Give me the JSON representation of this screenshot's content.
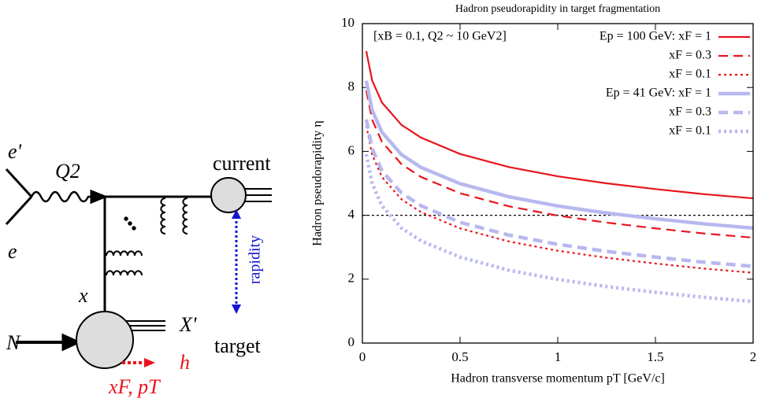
{
  "diagram": {
    "labels": [
      "e'",
      "Q2",
      "e",
      "x",
      "N",
      "current",
      "rapidity",
      "X'",
      "target",
      "h",
      "xF, pT"
    ]
  },
  "chart_data": {
    "type": "line",
    "title": "Hadron pseudorapidity in target fragmentation",
    "annotation": "[xB = 0.1, Q2 ~ 10 GeV2]",
    "x_label": "Hadron transverse momentum   pT   [GeV/c]",
    "y_label": "Hadron pseudorapidity   η",
    "x": [
      0.02,
      0.05,
      0.1,
      0.2,
      0.3,
      0.5,
      0.75,
      1,
      1.25,
      1.5,
      1.75,
      2
    ],
    "series": [
      {
        "name": "Ep = 100 GeV: xF = 1",
        "color": "#e8141c",
        "dash": "solid",
        "values": [
          9.14,
          8.22,
          7.53,
          6.83,
          6.43,
          5.92,
          5.51,
          5.22,
          5.0,
          4.82,
          4.66,
          4.53
        ]
      },
      {
        "name": "xF = 0.3",
        "color": "#e8141c",
        "dash": "dashed",
        "values": [
          7.91,
          6.99,
          6.3,
          5.6,
          5.2,
          4.69,
          4.28,
          3.99,
          3.77,
          3.59,
          3.43,
          3.3
        ]
      },
      {
        "name": "xF = 0.1",
        "color": "#e8141c",
        "dash": "dotted",
        "values": [
          6.81,
          5.89,
          5.2,
          4.5,
          4.1,
          3.59,
          3.18,
          2.89,
          2.67,
          2.49,
          2.33,
          2.2
        ]
      },
      {
        "name": "Ep = 41 GeV: xF = 1",
        "color": "#b8b8f0",
        "dash": "solid",
        "values": [
          8.21,
          7.29,
          6.6,
          5.9,
          5.5,
          4.99,
          4.58,
          4.29,
          4.07,
          3.89,
          3.73,
          3.6
        ]
      },
      {
        "name": "xF = 0.3",
        "color": "#b8b8f0",
        "dash": "dashed",
        "values": [
          7.0,
          6.09,
          5.39,
          4.7,
          4.3,
          3.78,
          3.38,
          3.09,
          2.87,
          2.69,
          2.53,
          2.4
        ]
      },
      {
        "name": "xF = 0.1",
        "color": "#b8b8f0",
        "dash": "dotted",
        "values": [
          5.91,
          4.99,
          4.3,
          3.6,
          3.2,
          2.69,
          2.28,
          1.99,
          1.77,
          1.59,
          1.43,
          1.3
        ]
      }
    ],
    "hline": 4,
    "xlim": [
      0,
      2
    ],
    "xticks": [
      0,
      0.5,
      1,
      1.5,
      2
    ],
    "ylim": [
      0,
      10
    ],
    "yticks": [
      0,
      2,
      4,
      6,
      8,
      10
    ],
    "legend": "top-right"
  }
}
